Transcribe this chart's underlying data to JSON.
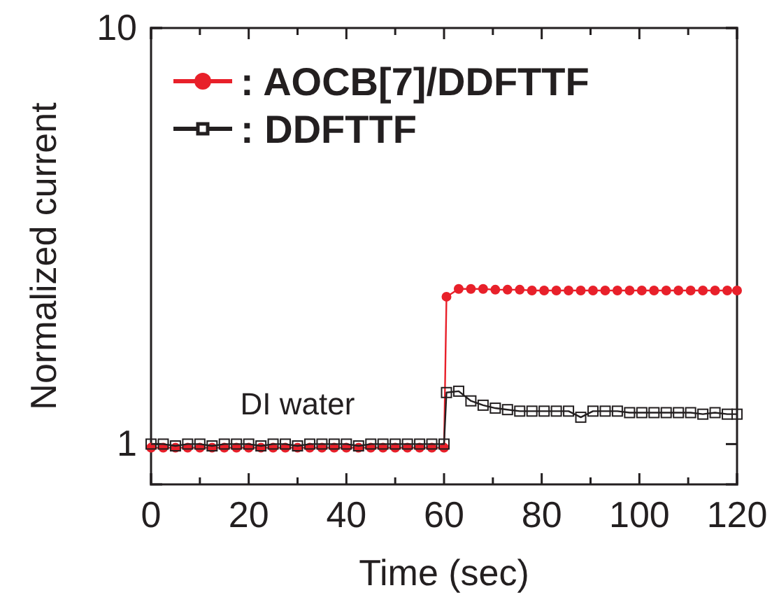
{
  "chart_data": {
    "type": "line",
    "xlabel": "Time (sec)",
    "ylabel": "Normalized current",
    "log": "y",
    "xlim": [
      0,
      120
    ],
    "ylim": [
      0.8,
      10
    ],
    "xticks": [
      0,
      {
        "value": 10,
        "label": null
      },
      20,
      {
        "value": 30,
        "label": null
      },
      40,
      {
        "value": 50,
        "label": null
      },
      60,
      {
        "value": 70,
        "label": null
      },
      80,
      {
        "value": 90,
        "label": null
      },
      100,
      {
        "value": 110,
        "label": null
      },
      120
    ],
    "yticks": [
      1,
      10
    ],
    "legend": "top left",
    "annotations": [
      "DI water"
    ],
    "series": [
      {
        "name": ": AOCB[7]/DDFTTF",
        "color": "#e8202a",
        "marker": "circle",
        "x": [
          0,
          2.5,
          5,
          7.5,
          10,
          12.5,
          15,
          17.5,
          20,
          22.5,
          25,
          27.5,
          30,
          32.5,
          35,
          37.5,
          40,
          42.5,
          45,
          47.5,
          50,
          52.5,
          55,
          57.5,
          60,
          60.5,
          63,
          65.5,
          68,
          70.5,
          73,
          75.5,
          78,
          80.5,
          83,
          85.5,
          88,
          90.5,
          93,
          95.5,
          98,
          100.5,
          103,
          105.5,
          108,
          110.5,
          113,
          115.5,
          118,
          120
        ],
        "values": [
          0.98,
          0.98,
          0.98,
          0.98,
          0.98,
          0.98,
          0.98,
          0.98,
          0.98,
          0.98,
          0.98,
          0.98,
          0.98,
          0.98,
          0.98,
          0.98,
          0.98,
          0.98,
          0.98,
          0.98,
          0.98,
          0.98,
          0.98,
          0.98,
          0.98,
          2.26,
          2.36,
          2.36,
          2.36,
          2.35,
          2.35,
          2.35,
          2.34,
          2.34,
          2.34,
          2.34,
          2.34,
          2.34,
          2.34,
          2.34,
          2.34,
          2.34,
          2.34,
          2.34,
          2.34,
          2.34,
          2.34,
          2.34,
          2.34,
          2.34
        ]
      },
      {
        "name": ": DDFTTF",
        "color": "#231f20",
        "marker": "square",
        "x": [
          0,
          2.5,
          5,
          7.5,
          10,
          12.5,
          15,
          17.5,
          20,
          22.5,
          25,
          27.5,
          30,
          32.5,
          35,
          37.5,
          40,
          42.5,
          45,
          47.5,
          50,
          52.5,
          55,
          57.5,
          60,
          60.5,
          63,
          65.5,
          68,
          70.5,
          73,
          75.5,
          78,
          80.5,
          83,
          85.5,
          88,
          90.5,
          93,
          95.5,
          98,
          100.5,
          103,
          105.5,
          108,
          110.5,
          113,
          115.5,
          118,
          120
        ],
        "values": [
          1.0,
          1.0,
          0.99,
          1.0,
          1.0,
          0.99,
          1.0,
          1.0,
          1.0,
          0.99,
          1.0,
          1.0,
          0.99,
          1.0,
          1.0,
          1.0,
          1.0,
          0.99,
          1.0,
          1.0,
          1.0,
          1.0,
          1.0,
          1.0,
          1.0,
          1.33,
          1.34,
          1.27,
          1.24,
          1.22,
          1.21,
          1.2,
          1.2,
          1.2,
          1.2,
          1.2,
          1.16,
          1.2,
          1.2,
          1.2,
          1.19,
          1.19,
          1.19,
          1.19,
          1.19,
          1.19,
          1.18,
          1.19,
          1.18,
          1.18
        ]
      }
    ]
  }
}
